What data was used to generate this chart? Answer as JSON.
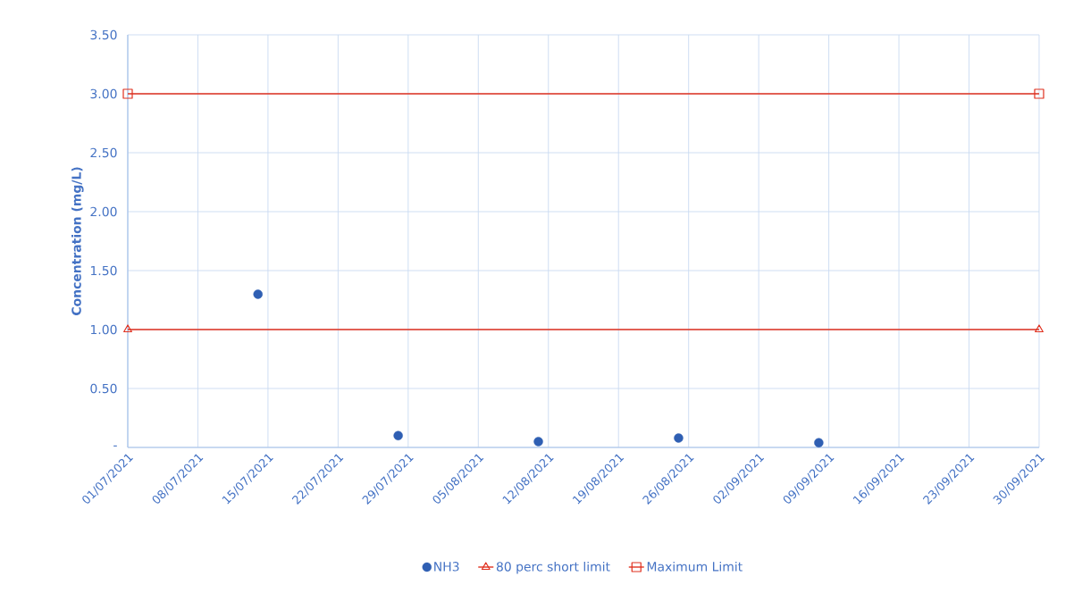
{
  "chart_data": {
    "type": "scatter",
    "ylabel": "Concentration (mg/L)",
    "xlim": [
      "2021-07-01",
      "2021-09-30"
    ],
    "xticks": [
      {
        "value": "2021-07-01",
        "label": "01/07/2021"
      },
      {
        "value": "2021-07-08",
        "label": "08/07/2021"
      },
      {
        "value": "2021-07-15",
        "label": "15/07/2021"
      },
      {
        "value": "2021-07-22",
        "label": "22/07/2021"
      },
      {
        "value": "2021-07-29",
        "label": "29/07/2021"
      },
      {
        "value": "2021-08-05",
        "label": "05/08/2021"
      },
      {
        "value": "2021-08-12",
        "label": "12/08/2021"
      },
      {
        "value": "2021-08-19",
        "label": "19/08/2021"
      },
      {
        "value": "2021-08-26",
        "label": "26/08/2021"
      },
      {
        "value": "2021-09-02",
        "label": "02/09/2021"
      },
      {
        "value": "2021-09-09",
        "label": "09/09/2021"
      },
      {
        "value": "2021-09-16",
        "label": "16/09/2021"
      },
      {
        "value": "2021-09-23",
        "label": "23/09/2021"
      },
      {
        "value": "2021-09-30",
        "label": "30/09/2021"
      }
    ],
    "ylim": [
      0,
      3.5
    ],
    "yticks": [
      {
        "value": 0,
        "label": "-"
      },
      {
        "value": 0.5,
        "label": "0.50"
      },
      {
        "value": 1,
        "label": "1.00"
      },
      {
        "value": 1.5,
        "label": "1.50"
      },
      {
        "value": 2,
        "label": "2.00"
      },
      {
        "value": 2.5,
        "label": "2.50"
      },
      {
        "value": 3,
        "label": "3.00"
      },
      {
        "value": 3.5,
        "label": "3.50"
      }
    ],
    "grid": true,
    "legend": "bottom",
    "series": [
      {
        "name": "NH3",
        "marker": "circle",
        "color": "#2f5fb3",
        "x": [
          "2021-07-14",
          "2021-07-28",
          "2021-08-11",
          "2021-08-25",
          "2021-09-08"
        ],
        "values": [
          1.3,
          0.1,
          0.05,
          0.08,
          0.04
        ]
      },
      {
        "name": "80 perc short limit",
        "type": "line",
        "marker": "triangle",
        "color": "#e0301e",
        "x": [
          "2021-07-01",
          "2021-09-30"
        ],
        "values": [
          1,
          1
        ]
      },
      {
        "name": "Maximum Limit",
        "type": "line",
        "marker": "square",
        "color": "#e0301e",
        "x": [
          "2021-07-01",
          "2021-09-30"
        ],
        "values": [
          3,
          3
        ]
      }
    ]
  }
}
